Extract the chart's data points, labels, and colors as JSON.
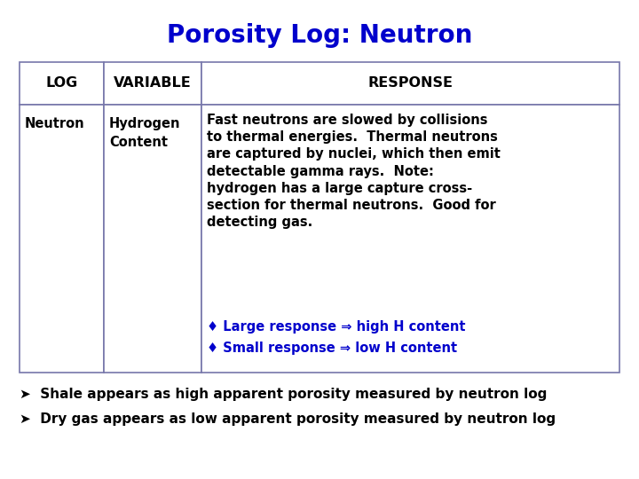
{
  "title": "Porosity Log: Neutron",
  "title_color": "#0000CC",
  "title_fontsize": 20,
  "header_row": [
    "LOG",
    "VARIABLE",
    "RESPONSE"
  ],
  "data_row_col0": "Neutron",
  "data_row_col1": "Hydrogen\nContent",
  "response_black_text": "Fast neutrons are slowed by collisions\nto thermal energies.  Thermal neutrons\nare captured by nuclei, which then emit\ndetectable gamma rays.  Note:\nhydrogen has a large capture cross-\nsection for thermal neutrons.  Good for\ndetecting gas.",
  "response_blue_line1": "♦ Large response ⇒ high H content",
  "response_blue_line2": "♦ Small response ⇒ low H content",
  "blue_color": "#0000CC",
  "black_color": "#000000",
  "border_color": "#7777AA",
  "footer_line1": "➤  Shale appears as high apparent porosity measured by neutron log",
  "footer_line2": "➤  Dry gas appears as low apparent porosity measured by neutron log",
  "font_size_table": 10.5,
  "font_size_footer": 11
}
